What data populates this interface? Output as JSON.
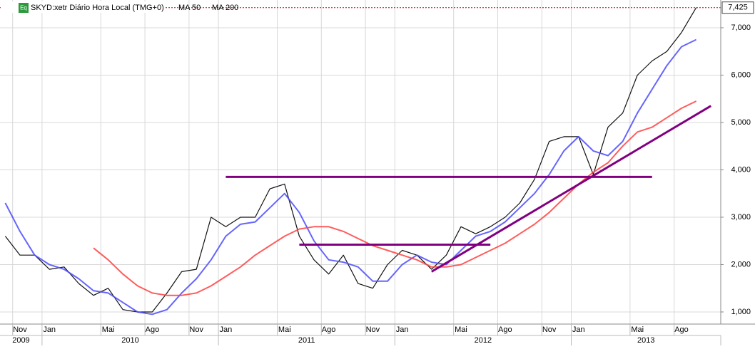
{
  "chart_data": {
    "type": "line",
    "title": "SKYD:xetr Diário Hora Local (TMG+0)",
    "badge": "Eq",
    "x": [
      "2009-10",
      "2009-11",
      "2009-12",
      "2010-01",
      "2010-02",
      "2010-03",
      "2010-04",
      "2010-05",
      "2010-06",
      "2010-07",
      "2010-08",
      "2010-09",
      "2010-10",
      "2010-11",
      "2010-12",
      "2011-01",
      "2011-02",
      "2011-03",
      "2011-04",
      "2011-05",
      "2011-06",
      "2011-07",
      "2011-08",
      "2011-09",
      "2011-10",
      "2011-11",
      "2011-12",
      "2012-01",
      "2012-02",
      "2012-03",
      "2012-04",
      "2012-05",
      "2012-06",
      "2012-07",
      "2012-08",
      "2012-09",
      "2012-10",
      "2012-11",
      "2012-12",
      "2013-01",
      "2013-02",
      "2013-03",
      "2013-04",
      "2013-05",
      "2013-06",
      "2013-07",
      "2013-08",
      "2013-09"
    ],
    "series": [
      {
        "name": "SKYD:xetr Diário Hora Local (TMG+0)",
        "color": "#111111",
        "values": [
          2600,
          2200,
          2200,
          1900,
          1950,
          1600,
          1350,
          1500,
          1050,
          1000,
          1000,
          1400,
          1850,
          1900,
          3000,
          2800,
          3000,
          3000,
          3600,
          3700,
          2600,
          2100,
          1800,
          2200,
          1600,
          1500,
          2000,
          2300,
          2200,
          1900,
          2200,
          2800,
          2650,
          2800,
          3000,
          3300,
          3800,
          4600,
          4700,
          4700,
          3900,
          4900,
          5200,
          6000,
          6300,
          6500,
          6900,
          7425
        ]
      },
      {
        "name": "MA 50",
        "color": "#4a4aff",
        "values": [
          3300,
          2700,
          2200,
          2000,
          1900,
          1700,
          1450,
          1400,
          1200,
          1000,
          950,
          1050,
          1400,
          1700,
          2100,
          2600,
          2850,
          2900,
          3200,
          3500,
          3100,
          2500,
          2100,
          2050,
          1950,
          1650,
          1650,
          2000,
          2200,
          2050,
          2000,
          2300,
          2600,
          2700,
          2900,
          3200,
          3500,
          3900,
          4400,
          4700,
          4400,
          4300,
          4600,
          5200,
          5700,
          6200,
          6600,
          6750
        ]
      },
      {
        "name": "MA 200",
        "color": "#ff4040",
        "values": [
          null,
          null,
          null,
          null,
          null,
          null,
          2350,
          2100,
          1800,
          1550,
          1400,
          1350,
          1350,
          1400,
          1550,
          1750,
          1950,
          2200,
          2400,
          2600,
          2750,
          2800,
          2800,
          2700,
          2550,
          2400,
          2300,
          2200,
          2100,
          1950,
          1950,
          2000,
          2150,
          2300,
          2450,
          2650,
          2850,
          3100,
          3400,
          3700,
          3950,
          4150,
          4500,
          4800,
          4900,
          5100,
          5300,
          5450
        ]
      }
    ],
    "trend_lines": [
      {
        "color": "#800080",
        "x": [
          "2011-01",
          "2013-06"
        ],
        "values": [
          3850,
          3850
        ]
      },
      {
        "color": "#800080",
        "x": [
          "2011-06",
          "2012-07"
        ],
        "values": [
          2420,
          2420
        ]
      },
      {
        "color": "#800080",
        "x": [
          "2012-03",
          "2013-10"
        ],
        "values": [
          1850,
          5350
        ]
      }
    ],
    "last": {
      "value": 7425,
      "label": "7,425"
    },
    "ylim": [
      744,
      7586
    ],
    "yticks": [
      {
        "value": 1000,
        "label": "1,000"
      },
      {
        "value": 2000,
        "label": "2,000"
      },
      {
        "value": 3000,
        "label": "3,000"
      },
      {
        "value": 4000,
        "label": "4,000"
      },
      {
        "value": 5000,
        "label": "5,000"
      },
      {
        "value": 6000,
        "label": "6,000"
      },
      {
        "value": 7000,
        "label": "7,000"
      }
    ],
    "xticks": [
      {
        "value": "2009-11",
        "label": "Nov"
      },
      {
        "value": "2010-01",
        "label": "Jan"
      },
      {
        "value": "2010-05",
        "label": "Mai"
      },
      {
        "value": "2010-08",
        "label": "Ago"
      },
      {
        "value": "2010-11",
        "label": "Nov"
      },
      {
        "value": "2011-01",
        "label": "Jan"
      },
      {
        "value": "2011-05",
        "label": "Mai"
      },
      {
        "value": "2011-08",
        "label": "Ago"
      },
      {
        "value": "2011-11",
        "label": "Nov"
      },
      {
        "value": "2012-01",
        "label": "Jan"
      },
      {
        "value": "2012-05",
        "label": "Mai"
      },
      {
        "value": "2012-08",
        "label": "Ago"
      },
      {
        "value": "2012-11",
        "label": "Nov"
      },
      {
        "value": "2013-01",
        "label": "Jan"
      },
      {
        "value": "2013-05",
        "label": "Mai"
      },
      {
        "value": "2013-08",
        "label": "Ago"
      }
    ],
    "year_ticks": [
      "2009",
      "2010",
      "2011",
      "2012",
      "2013"
    ],
    "grid": true
  }
}
